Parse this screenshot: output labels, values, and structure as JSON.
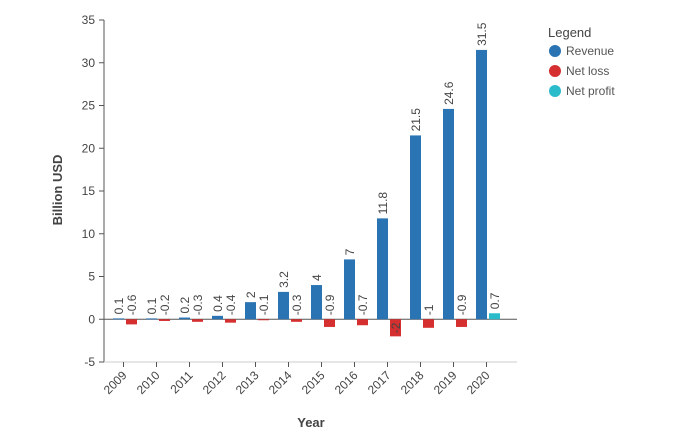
{
  "chart_data": {
    "type": "bar",
    "title": "",
    "xlabel": "Year",
    "ylabel": "Billion USD",
    "ylim": [
      -5,
      35
    ],
    "yticks": [
      35,
      30,
      25,
      20,
      15,
      10,
      5,
      0,
      -5
    ],
    "grid": false,
    "legend": {
      "title": "Legend",
      "placement": "top-right"
    },
    "categories": [
      "2009",
      "2010",
      "2011",
      "2012",
      "2013",
      "2014",
      "2015",
      "2016",
      "2017",
      "2018",
      "2019",
      "2020"
    ],
    "series": [
      {
        "name": "Revenue",
        "color": "#2a74b3",
        "values": [
          0.1,
          0.1,
          0.2,
          0.4,
          2,
          3.2,
          4,
          7,
          11.8,
          21.5,
          24.6,
          31.5
        ]
      },
      {
        "name": "Net loss",
        "color": "#d62f2f",
        "values": [
          -0.6,
          -0.2,
          -0.3,
          -0.4,
          -0.1,
          -0.3,
          -0.9,
          -0.7,
          -2,
          -1,
          -0.9,
          null
        ]
      },
      {
        "name": "Net profit",
        "color": "#2bbccc",
        "values": [
          null,
          null,
          null,
          null,
          null,
          null,
          null,
          null,
          null,
          null,
          null,
          0.7
        ]
      }
    ]
  }
}
